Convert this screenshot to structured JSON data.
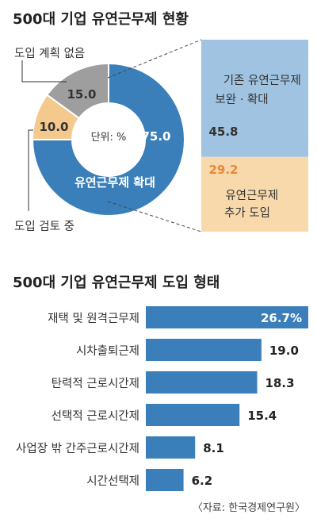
{
  "colors": {
    "expand": "#3a7fba",
    "light_blue": "#9fc3e0",
    "orange": "#f3c98e",
    "orange_light": "#f8d9ac",
    "gray": "#9e9e9e",
    "bar": "#3a7fba"
  },
  "chart_data": [
    {
      "type": "pie",
      "title": "500대 기업 유연근무제 현황",
      "unit_note": "단위: %",
      "slices": [
        {
          "label": "유연근무제 확대",
          "value": 75.0
        },
        {
          "label": "도입 검토 중",
          "value": 10.0
        },
        {
          "label": "도입 계획 없음",
          "value": 15.0
        }
      ],
      "breakdown": {
        "of": "유연근무제 확대",
        "segments": [
          {
            "label_lines": [
              "기존 유연근무제",
              "보완 · 확대"
            ],
            "value": 45.8
          },
          {
            "label_lines": [
              "유연근무제",
              "추가 도입"
            ],
            "value": 29.2
          }
        ]
      }
    },
    {
      "type": "bar",
      "orientation": "horizontal",
      "title": "500대 기업 유연근무제 도입 형태",
      "categories": [
        "재택 및 원격근무제",
        "시차출퇴근제",
        "탄력적 근로시간제",
        "선택적 근로시간제",
        "사업장 밖 간주근로시간제",
        "시간선택제"
      ],
      "values": [
        26.7,
        19.0,
        18.3,
        15.4,
        8.1,
        6.2
      ],
      "value_labels": [
        "26.7%",
        "19.0",
        "18.3",
        "15.4",
        "8.1",
        "6.2"
      ],
      "xlim": [
        0,
        26.7
      ]
    }
  ],
  "source": "〈자료: 한국경제연구원〉"
}
